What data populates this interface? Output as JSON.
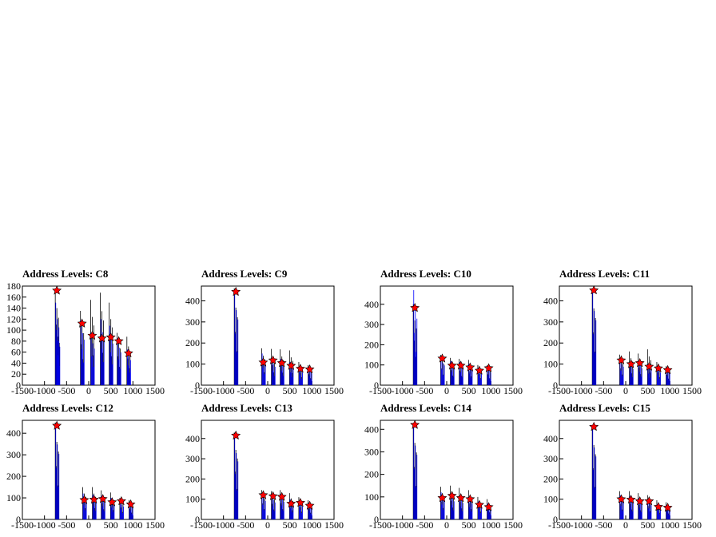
{
  "canvas": {
    "background": "#ffffff"
  },
  "colors": {
    "black_hist": "#000000",
    "blue_hist": "#0000ff",
    "marker": "#ff0000",
    "frame": "#000000"
  },
  "chart_data": [
    {
      "type": "bar",
      "title": "Address Levels: C8",
      "xlabel": "",
      "ylabel": "",
      "xlim": [
        -1500,
        1500
      ],
      "ylim": [
        0,
        180
      ],
      "x_ticks": [
        "-1500",
        "-1000",
        "-500",
        "0",
        "500",
        "1000",
        "1500"
      ],
      "y_ticks": [
        "0",
        "20",
        "40",
        "60",
        "80",
        "100",
        "120",
        "140",
        "160",
        "180"
      ],
      "y_tick_values": [
        0,
        20,
        40,
        60,
        80,
        100,
        120,
        140,
        160,
        180
      ],
      "series": [
        {
          "values": [
            [
              -720,
              175
            ],
            [
              -700,
              110
            ],
            [
              -150,
              135
            ],
            [
              80,
              155
            ],
            [
              300,
              168
            ],
            [
              500,
              150
            ],
            [
              680,
              95
            ],
            [
              900,
              88
            ]
          ]
        },
        {
          "values": [
            [
              -720,
              150
            ],
            [
              -700,
              100
            ],
            [
              -150,
              118
            ],
            [
              80,
              95
            ],
            [
              300,
              120
            ],
            [
              500,
              108
            ],
            [
              680,
              85
            ],
            [
              900,
              65
            ]
          ]
        }
      ],
      "peaks": [
        {
          "x": -720,
          "y": 172
        },
        {
          "x": -150,
          "y": 112
        },
        {
          "x": 80,
          "y": 90
        },
        {
          "x": 300,
          "y": 85
        },
        {
          "x": 500,
          "y": 87
        },
        {
          "x": 680,
          "y": 80
        },
        {
          "x": 900,
          "y": 58
        }
      ]
    },
    {
      "type": "bar",
      "title": "Address Levels: C9",
      "xlabel": "",
      "ylabel": "",
      "xlim": [
        -1500,
        1500
      ],
      "ylim": [
        0,
        470
      ],
      "x_ticks": [
        "-1500",
        "-1000",
        "-500",
        "0",
        "500",
        "1000",
        "1500"
      ],
      "y_ticks": [
        "0",
        "100",
        "200",
        "300",
        "400"
      ],
      "y_tick_values": [
        0,
        100,
        200,
        300,
        400
      ],
      "series": [
        {
          "values": [
            [
              -720,
              460
            ],
            [
              -100,
              175
            ],
            [
              120,
              172
            ],
            [
              320,
              170
            ],
            [
              530,
              165
            ],
            [
              740,
              110
            ],
            [
              950,
              95
            ]
          ]
        },
        {
          "values": [
            [
              -720,
              445
            ],
            [
              -100,
              150
            ],
            [
              120,
              125
            ],
            [
              320,
              125
            ],
            [
              530,
              110
            ],
            [
              740,
              85
            ],
            [
              950,
              80
            ]
          ]
        }
      ],
      "peaks": [
        {
          "x": -720,
          "y": 443
        },
        {
          "x": -100,
          "y": 108
        },
        {
          "x": 120,
          "y": 118
        },
        {
          "x": 320,
          "y": 105
        },
        {
          "x": 530,
          "y": 92
        },
        {
          "x": 740,
          "y": 78
        },
        {
          "x": 950,
          "y": 75
        }
      ]
    },
    {
      "type": "bar",
      "title": "Address Levels: C10",
      "xlabel": "",
      "ylabel": "",
      "xlim": [
        -1500,
        1500
      ],
      "ylim": [
        0,
        490
      ],
      "x_ticks": [
        "-1500",
        "-1000",
        "-500",
        "0",
        "500",
        "1000",
        "1500"
      ],
      "y_ticks": [
        "0",
        "100",
        "200",
        "300",
        "400"
      ],
      "y_tick_values": [
        0,
        100,
        200,
        300,
        400
      ],
      "series": [
        {
          "values": [
            [
              -720,
              400
            ],
            [
              -100,
              150
            ],
            [
              120,
              135
            ],
            [
              320,
              130
            ],
            [
              530,
              125
            ],
            [
              740,
              100
            ],
            [
              950,
              98
            ]
          ]
        },
        {
          "values": [
            [
              -720,
              470
            ],
            [
              -100,
              140
            ],
            [
              120,
              120
            ],
            [
              320,
              115
            ],
            [
              530,
              105
            ],
            [
              740,
              85
            ],
            [
              950,
              90
            ]
          ]
        }
      ],
      "peaks": [
        {
          "x": -720,
          "y": 382
        },
        {
          "x": -100,
          "y": 132
        },
        {
          "x": 120,
          "y": 97
        },
        {
          "x": 320,
          "y": 97
        },
        {
          "x": 530,
          "y": 88
        },
        {
          "x": 740,
          "y": 72
        },
        {
          "x": 950,
          "y": 84
        }
      ]
    },
    {
      "type": "bar",
      "title": "Address Levels: C11",
      "xlabel": "",
      "ylabel": "",
      "xlim": [
        -1500,
        1500
      ],
      "ylim": [
        0,
        470
      ],
      "x_ticks": [
        "-1500",
        "-1000",
        "-500",
        "0",
        "500",
        "1000",
        "1500"
      ],
      "y_ticks": [
        "0",
        "100",
        "200",
        "300",
        "400"
      ],
      "y_tick_values": [
        0,
        100,
        200,
        300,
        400
      ],
      "series": [
        {
          "values": [
            [
              -720,
              455
            ],
            [
              -100,
              145
            ],
            [
              120,
              160
            ],
            [
              320,
              150
            ],
            [
              530,
              170
            ],
            [
              740,
              110
            ],
            [
              950,
              90
            ]
          ]
        },
        {
          "values": [
            [
              -720,
              440
            ],
            [
              -100,
              125
            ],
            [
              120,
              110
            ],
            [
              320,
              115
            ],
            [
              530,
              100
            ],
            [
              740,
              85
            ],
            [
              950,
              80
            ]
          ]
        }
      ],
      "peaks": [
        {
          "x": -720,
          "y": 450
        },
        {
          "x": -100,
          "y": 118
        },
        {
          "x": 120,
          "y": 100
        },
        {
          "x": 320,
          "y": 105
        },
        {
          "x": 530,
          "y": 88
        },
        {
          "x": 740,
          "y": 80
        },
        {
          "x": 950,
          "y": 72
        }
      ]
    },
    {
      "type": "bar",
      "title": "Address Levels: C12",
      "xlabel": "",
      "ylabel": "",
      "xlim": [
        -1500,
        1500
      ],
      "ylim": [
        0,
        460
      ],
      "x_ticks": [
        "-1500",
        "-1000",
        "-500",
        "0",
        "500",
        "1000",
        "1500"
      ],
      "y_ticks": [
        "0",
        "100",
        "200",
        "300",
        "400"
      ],
      "y_tick_values": [
        0,
        100,
        200,
        300,
        400
      ],
      "series": [
        {
          "values": [
            [
              -720,
              450
            ],
            [
              -100,
              150
            ],
            [
              120,
              150
            ],
            [
              320,
              135
            ],
            [
              530,
              125
            ],
            [
              740,
              100
            ],
            [
              950,
              90
            ]
          ]
        },
        {
          "values": [
            [
              -720,
              435
            ],
            [
              -100,
              120
            ],
            [
              120,
              115
            ],
            [
              320,
              110
            ],
            [
              530,
              100
            ],
            [
              740,
              85
            ],
            [
              950,
              75
            ]
          ]
        }
      ],
      "peaks": [
        {
          "x": -720,
          "y": 435
        },
        {
          "x": -100,
          "y": 90
        },
        {
          "x": 120,
          "y": 92
        },
        {
          "x": 320,
          "y": 95
        },
        {
          "x": 530,
          "y": 80
        },
        {
          "x": 740,
          "y": 85
        },
        {
          "x": 950,
          "y": 70
        }
      ]
    },
    {
      "type": "bar",
      "title": "Address Levels: C13",
      "xlabel": "",
      "ylabel": "",
      "xlim": [
        -1500,
        1500
      ],
      "ylim": [
        0,
        490
      ],
      "x_ticks": [
        "-1500",
        "-1000",
        "-500",
        "0",
        "500",
        "1000",
        "1500"
      ],
      "y_ticks": [
        "0",
        "100",
        "200",
        "300",
        "400"
      ],
      "y_tick_values": [
        0,
        100,
        200,
        300,
        400
      ],
      "series": [
        {
          "values": [
            [
              -720,
              430
            ],
            [
              -100,
              145
            ],
            [
              120,
              140
            ],
            [
              320,
              145
            ],
            [
              530,
              130
            ],
            [
              740,
              110
            ],
            [
              950,
              95
            ]
          ]
        },
        {
          "values": [
            [
              -720,
              410
            ],
            [
              -100,
              130
            ],
            [
              120,
              120
            ],
            [
              320,
              125
            ],
            [
              530,
              100
            ],
            [
              740,
              90
            ],
            [
              950,
              80
            ]
          ]
        }
      ],
      "peaks": [
        {
          "x": -720,
          "y": 415
        },
        {
          "x": -100,
          "y": 120
        },
        {
          "x": 120,
          "y": 115
        },
        {
          "x": 320,
          "y": 112
        },
        {
          "x": 530,
          "y": 78
        },
        {
          "x": 740,
          "y": 82
        },
        {
          "x": 950,
          "y": 68
        }
      ]
    },
    {
      "type": "bar",
      "title": "Address Levels: C14",
      "xlabel": "",
      "ylabel": "",
      "xlim": [
        -1500,
        1500
      ],
      "ylim": [
        0,
        440
      ],
      "x_ticks": [
        "-1500",
        "-1000",
        "-500",
        "0",
        "500",
        "1000",
        "1500"
      ],
      "y_ticks": [
        "0",
        "100",
        "200",
        "300",
        "400"
      ],
      "y_tick_values": [
        0,
        100,
        200,
        300,
        400
      ],
      "series": [
        {
          "values": [
            [
              -720,
              425
            ],
            [
              -100,
              145
            ],
            [
              120,
              150
            ],
            [
              320,
              140
            ],
            [
              530,
              130
            ],
            [
              740,
              100
            ],
            [
              950,
              90
            ]
          ]
        },
        {
          "values": [
            [
              -720,
              410
            ],
            [
              -100,
              120
            ],
            [
              120,
              115
            ],
            [
              320,
              105
            ],
            [
              530,
              100
            ],
            [
              740,
              80
            ],
            [
              950,
              70
            ]
          ]
        }
      ],
      "peaks": [
        {
          "x": -720,
          "y": 420
        },
        {
          "x": -100,
          "y": 95
        },
        {
          "x": 120,
          "y": 105
        },
        {
          "x": 320,
          "y": 95
        },
        {
          "x": 530,
          "y": 90
        },
        {
          "x": 740,
          "y": 65
        },
        {
          "x": 950,
          "y": 55
        }
      ]
    },
    {
      "type": "bar",
      "title": "Address Levels: C15",
      "xlabel": "",
      "ylabel": "",
      "xlim": [
        -1500,
        1500
      ],
      "ylim": [
        0,
        490
      ],
      "x_ticks": [
        "-1500",
        "-1000",
        "-500",
        "0",
        "500",
        "1000",
        "1500"
      ],
      "y_ticks": [
        "0",
        "100",
        "200",
        "300",
        "400"
      ],
      "y_tick_values": [
        0,
        100,
        200,
        300,
        400
      ],
      "series": [
        {
          "values": [
            [
              -720,
              460
            ],
            [
              -100,
              140
            ],
            [
              120,
              140
            ],
            [
              320,
              130
            ],
            [
              530,
              120
            ],
            [
              740,
              95
            ],
            [
              950,
              85
            ]
          ]
        },
        {
          "values": [
            [
              -720,
              445
            ],
            [
              -100,
              120
            ],
            [
              120,
              115
            ],
            [
              320,
              105
            ],
            [
              530,
              100
            ],
            [
              740,
              75
            ],
            [
              950,
              70
            ]
          ]
        }
      ],
      "peaks": [
        {
          "x": -720,
          "y": 458
        },
        {
          "x": -100,
          "y": 100
        },
        {
          "x": 120,
          "y": 98
        },
        {
          "x": 320,
          "y": 90
        },
        {
          "x": 530,
          "y": 90
        },
        {
          "x": 740,
          "y": 62
        },
        {
          "x": 950,
          "y": 58
        }
      ]
    }
  ]
}
